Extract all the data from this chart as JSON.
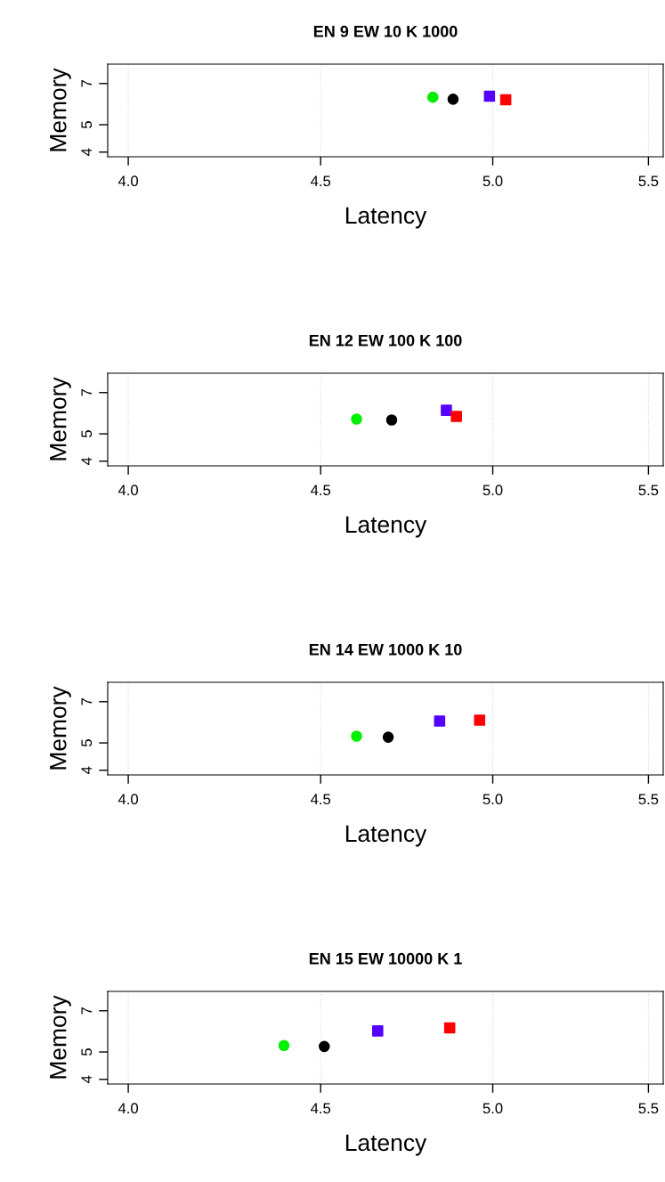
{
  "chart_data": [
    {
      "type": "scatter",
      "title": "EN 9 EW 10 K 1000",
      "xlabel": "Latency",
      "ylabel": "Memory",
      "log": "xy",
      "grid": "x",
      "xlim": [
        3.95,
        5.55
      ],
      "ylim": [
        3.85,
        8.2
      ],
      "xticks": [
        {
          "value": 4,
          "label": "4.0"
        },
        {
          "value": 4.5,
          "label": "4.5"
        },
        {
          "value": 5,
          "label": "5.0"
        },
        {
          "value": 5.5,
          "label": "5.5"
        }
      ],
      "yticks": [
        4,
        5,
        7
      ],
      "series": [
        {
          "color": "#00ee00",
          "marker": "circle",
          "x": [
            4.82
          ],
          "values": [
            6.26
          ]
        },
        {
          "color": "#000000",
          "marker": "circle",
          "x": [
            4.88
          ],
          "values": [
            6.16
          ]
        },
        {
          "color": "#5500ff",
          "marker": "square",
          "x": [
            4.99
          ],
          "values": [
            6.31
          ]
        },
        {
          "color": "#ff0000",
          "marker": "square",
          "x": [
            5.04
          ],
          "values": [
            6.13
          ]
        }
      ]
    },
    {
      "type": "scatter",
      "title": "EN 12 EW 100 K 100",
      "xlabel": "Latency",
      "ylabel": "Memory",
      "log": "xy",
      "grid": "x",
      "xlim": [
        3.95,
        5.55
      ],
      "ylim": [
        3.85,
        8.2
      ],
      "xticks": [
        {
          "value": 4,
          "label": "4.0"
        },
        {
          "value": 4.5,
          "label": "4.5"
        },
        {
          "value": 5,
          "label": "5.0"
        },
        {
          "value": 5.5,
          "label": "5.5"
        }
      ],
      "yticks": [
        4,
        5,
        7
      ],
      "series": [
        {
          "color": "#00ee00",
          "marker": "circle",
          "x": [
            4.6
          ],
          "values": [
            5.64
          ]
        },
        {
          "color": "#000000",
          "marker": "circle",
          "x": [
            4.7
          ],
          "values": [
            5.6
          ]
        },
        {
          "color": "#5500ff",
          "marker": "square",
          "x": [
            4.86
          ],
          "values": [
            6.06
          ]
        },
        {
          "color": "#ff0000",
          "marker": "square",
          "x": [
            4.89
          ],
          "values": [
            5.76
          ]
        }
      ]
    },
    {
      "type": "scatter",
      "title": "EN 14 EW 1000 K 10",
      "xlabel": "Latency",
      "ylabel": "Memory",
      "log": "xy",
      "grid": "x",
      "xlim": [
        3.95,
        5.55
      ],
      "ylim": [
        3.85,
        8.2
      ],
      "xticks": [
        {
          "value": 4,
          "label": "4.0"
        },
        {
          "value": 4.5,
          "label": "4.5"
        },
        {
          "value": 5,
          "label": "5.0"
        },
        {
          "value": 5.5,
          "label": "5.5"
        }
      ],
      "yticks": [
        4,
        5,
        7
      ],
      "series": [
        {
          "color": "#00ee00",
          "marker": "circle",
          "x": [
            4.6
          ],
          "values": [
            5.28
          ]
        },
        {
          "color": "#000000",
          "marker": "circle",
          "x": [
            4.69
          ],
          "values": [
            5.24
          ]
        },
        {
          "color": "#5500ff",
          "marker": "square",
          "x": [
            4.84
          ],
          "values": [
            5.98
          ]
        },
        {
          "color": "#ff0000",
          "marker": "square",
          "x": [
            4.96
          ],
          "values": [
            6.02
          ]
        }
      ]
    },
    {
      "type": "scatter",
      "title": "EN 15 EW 10000 K 1",
      "xlabel": "Latency",
      "ylabel": "Memory",
      "log": "xy",
      "grid": "x",
      "xlim": [
        3.95,
        5.55
      ],
      "ylim": [
        3.85,
        8.2
      ],
      "xticks": [
        {
          "value": 4,
          "label": "4.0"
        },
        {
          "value": 4.5,
          "label": "4.5"
        },
        {
          "value": 5,
          "label": "5.0"
        },
        {
          "value": 5.5,
          "label": "5.5"
        }
      ],
      "yticks": [
        4,
        5,
        7
      ],
      "series": [
        {
          "color": "#00ee00",
          "marker": "circle",
          "x": [
            4.4
          ],
          "values": [
            5.27
          ]
        },
        {
          "color": "#000000",
          "marker": "circle",
          "x": [
            4.51
          ],
          "values": [
            5.23
          ]
        },
        {
          "color": "#5500ff",
          "marker": "square",
          "x": [
            4.66
          ],
          "values": [
            5.94
          ]
        },
        {
          "color": "#ff0000",
          "marker": "square",
          "x": [
            4.87
          ],
          "values": [
            6.09
          ]
        }
      ]
    }
  ]
}
